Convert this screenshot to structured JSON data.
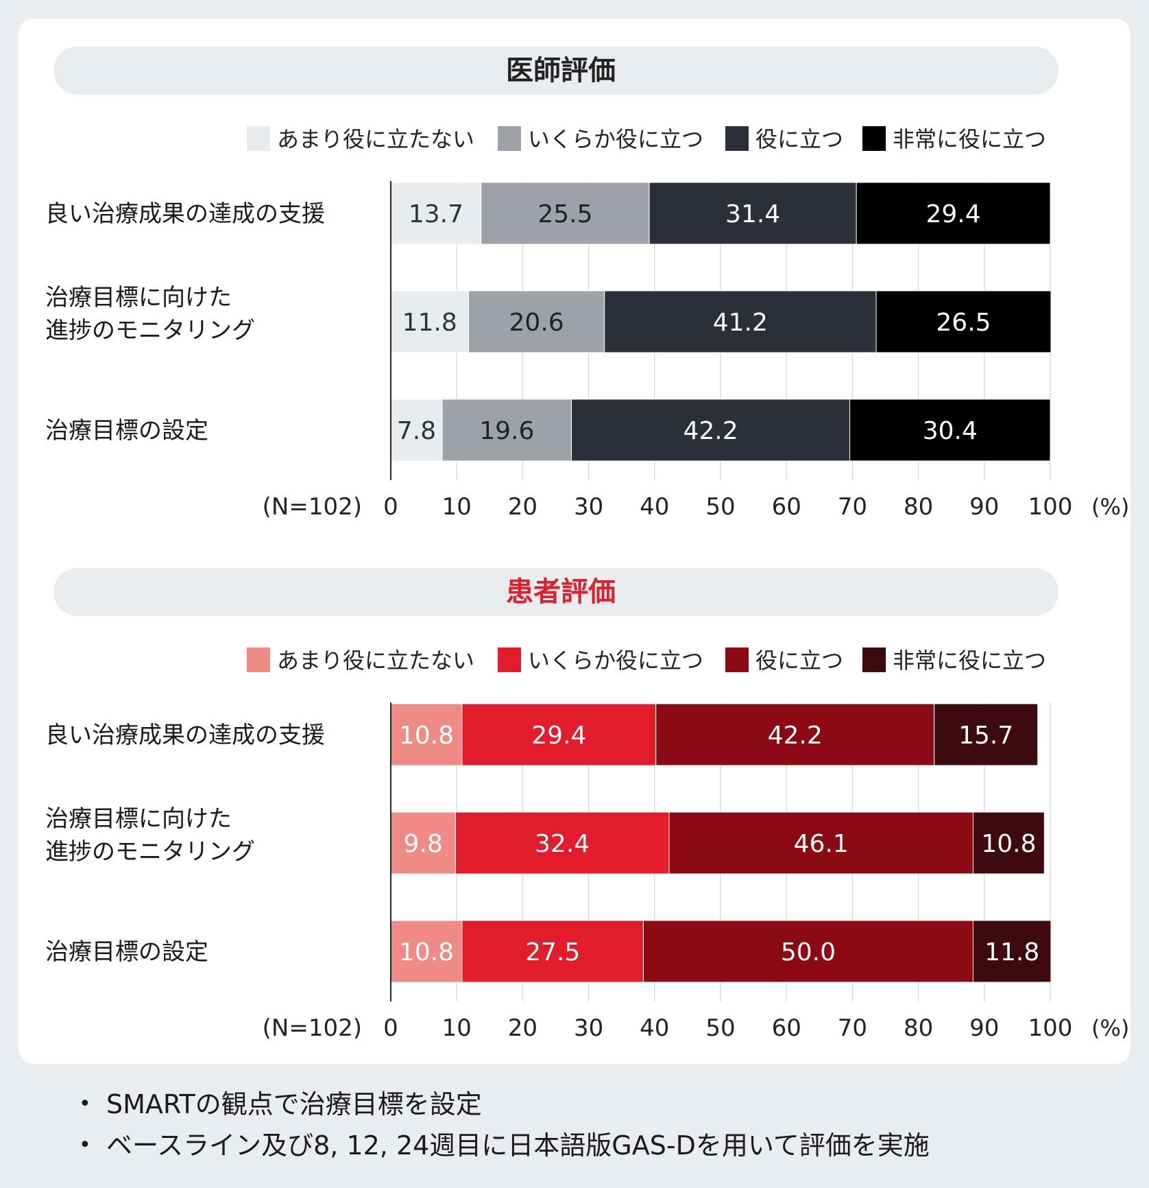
{
  "chart_data": [
    {
      "type": "bar",
      "stacked": true,
      "orientation": "horizontal",
      "title": "医師評価",
      "title_color": "#222222",
      "categories": [
        "良い治療成果の達成の支援",
        "治療目標に向けた\n進捗のモニタリング",
        "治療目標の設定"
      ],
      "series": [
        {
          "name": "あまり役に立たない",
          "color": "#e8ecef",
          "label_color": "#333333",
          "values": [
            13.7,
            11.8,
            7.8
          ]
        },
        {
          "name": "いくらか役に立つ",
          "color": "#9ea1a7",
          "label_color": "#222222",
          "values": [
            25.5,
            20.6,
            19.6
          ]
        },
        {
          "name": "役に立つ",
          "color": "#2b2f3a",
          "label_color": "#ffffff",
          "values": [
            31.4,
            41.2,
            42.2
          ]
        },
        {
          "name": "非常に役に立つ",
          "color": "#000000",
          "label_color": "#ffffff",
          "values": [
            29.4,
            26.5,
            30.4
          ]
        }
      ],
      "xlim": [
        0,
        100
      ],
      "ticks": [
        "0",
        "10",
        "20",
        "30",
        "40",
        "50",
        "60",
        "70",
        "80",
        "90",
        "100"
      ],
      "unit": "(%)",
      "n_label": "(N=102)",
      "grid": true
    },
    {
      "type": "bar",
      "stacked": true,
      "orientation": "horizontal",
      "title": "患者評価",
      "title_color": "#e01f2d",
      "categories": [
        "良い治療成果の達成の支援",
        "治療目標に向けた\n進捗のモニタリング",
        "治療目標の設定"
      ],
      "series": [
        {
          "name": "あまり役に立たない",
          "color": "#ef8b84",
          "label_color": "#ffffff",
          "values": [
            10.8,
            9.8,
            10.8
          ]
        },
        {
          "name": "いくらか役に立つ",
          "color": "#e21c2a",
          "label_color": "#ffffff",
          "values": [
            29.4,
            32.4,
            27.5
          ]
        },
        {
          "name": "役に立つ",
          "color": "#8c0a14",
          "label_color": "#ffffff",
          "values": [
            42.2,
            46.1,
            50.0
          ]
        },
        {
          "name": "非常に役に立つ",
          "color": "#3d0a0d",
          "label_color": "#ffffff",
          "values": [
            15.7,
            10.8,
            11.8
          ]
        }
      ],
      "xlim": [
        0,
        100
      ],
      "ticks": [
        "0",
        "10",
        "20",
        "30",
        "40",
        "50",
        "60",
        "70",
        "80",
        "90",
        "100"
      ],
      "unit": "(%)",
      "n_label": "(N=102)",
      "grid": true
    }
  ],
  "notes": [
    "SMARTの観点で治療目標を設定",
    "ベースライン及び8, 12, 24週目に日本語版GAS-Dを用いて評価を実施"
  ],
  "bullet_symbol": "•"
}
